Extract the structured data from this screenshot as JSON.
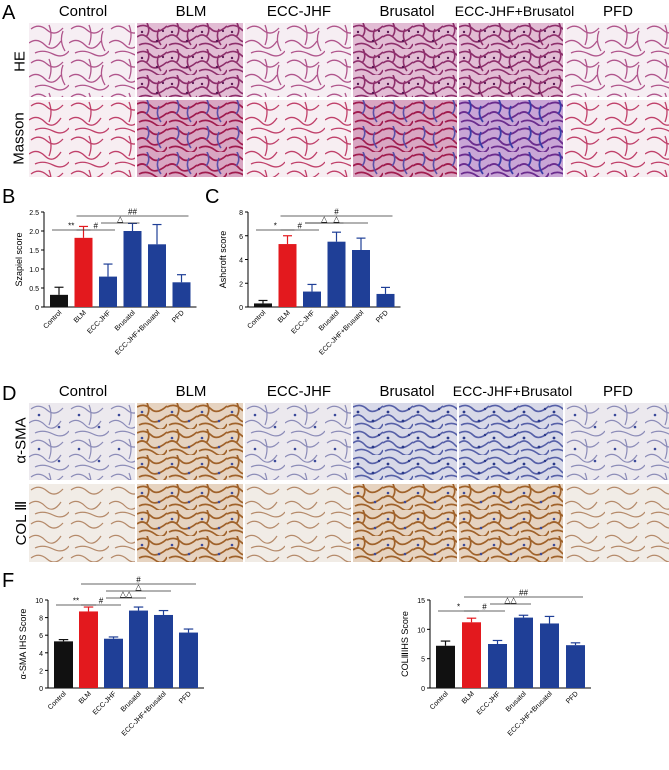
{
  "panelA": {
    "letter": "A",
    "columns": [
      "Control",
      "BLM",
      "ECC-JHF",
      "Brusatol",
      "ECC-JHF+Brusatol",
      "PFD"
    ],
    "rows": [
      "HE",
      "Masson"
    ]
  },
  "panelD": {
    "letter": "D",
    "columns": [
      "Control",
      "BLM",
      "ECC-JHF",
      "Brusatol",
      "ECC-JHF+Brusatol",
      "PFD"
    ],
    "rows": [
      "α-SMA",
      "COL Ⅲ"
    ]
  },
  "panelB": {
    "letter": "B"
  },
  "panelC": {
    "letter": "C"
  },
  "panelF": {
    "letter": "F"
  },
  "colors": {
    "control": "#111111",
    "blm": "#e3191e",
    "blue": "#1f3f97"
  },
  "chart_data": [
    {
      "panel": "B",
      "type": "bar",
      "ylabel": "Szapiel score",
      "ylim": [
        0,
        2.5
      ],
      "yticks": [
        0,
        0.5,
        1.0,
        1.5,
        2.0,
        2.5
      ],
      "ytick_labels": [
        "0",
        "0.5",
        "1.0",
        "1.5",
        "2.0",
        "2.5"
      ],
      "categories": [
        "Control",
        "BLM",
        "ECC-JHF",
        "Brusatol",
        "ECC-JHF+Brusatol",
        "PFD"
      ],
      "values": [
        0.32,
        1.82,
        0.8,
        2.0,
        1.65,
        0.65
      ],
      "errors": [
        0.2,
        0.3,
        0.33,
        0.2,
        0.52,
        0.2
      ],
      "annotations": [
        {
          "from": 0,
          "to": 1,
          "text": "**",
          "level": 0
        },
        {
          "from": 1,
          "to": 2,
          "text": "#",
          "level": 0
        },
        {
          "from": 2,
          "to": 3,
          "text": "△",
          "level": 1
        },
        {
          "from": 1,
          "to": 5,
          "text": "##",
          "level": 2
        }
      ]
    },
    {
      "panel": "C",
      "type": "bar",
      "ylabel": "Ashcroft score",
      "ylim": [
        0,
        8
      ],
      "yticks": [
        0,
        2,
        4,
        6,
        8
      ],
      "ytick_labels": [
        "0",
        "2",
        "4",
        "6",
        "8"
      ],
      "categories": [
        "Control",
        "BLM",
        "ECC-JHF",
        "Brusatol",
        "ECC-JHF+Brusatol",
        "PFD"
      ],
      "values": [
        0.3,
        5.3,
        1.3,
        5.5,
        4.8,
        1.1
      ],
      "errors": [
        0.25,
        0.7,
        0.6,
        0.8,
        1.0,
        0.55
      ],
      "annotations": [
        {
          "from": 0,
          "to": 1,
          "text": "*",
          "level": 0
        },
        {
          "from": 1,
          "to": 2,
          "text": "#",
          "level": 0
        },
        {
          "from": 2,
          "to": 3,
          "text": "△",
          "level": 1
        },
        {
          "from": 2,
          "to": 4,
          "text": "△",
          "level": 1
        },
        {
          "from": 1,
          "to": 5,
          "text": "#",
          "level": 2
        }
      ]
    },
    {
      "panel": "F1",
      "type": "bar",
      "ylabel": "α-SMA IHS Score",
      "ylim": [
        0,
        10
      ],
      "yticks": [
        0,
        2,
        4,
        6,
        8,
        10
      ],
      "ytick_labels": [
        "0",
        "2",
        "4",
        "6",
        "8",
        "10"
      ],
      "categories": [
        "Control",
        "BLM",
        "ECC-JHF",
        "Brusatol",
        "ECC-JHF+Brusatol",
        "PFD"
      ],
      "values": [
        5.3,
        8.7,
        5.6,
        8.8,
        8.3,
        6.3
      ],
      "errors": [
        0.2,
        0.5,
        0.2,
        0.4,
        0.5,
        0.4
      ],
      "annotations": [
        {
          "from": 0,
          "to": 1,
          "text": "**",
          "level": 0
        },
        {
          "from": 1,
          "to": 2,
          "text": "#",
          "level": 0
        },
        {
          "from": 2,
          "to": 3,
          "text": "△△",
          "level": 1
        },
        {
          "from": 2,
          "to": 4,
          "text": "△",
          "level": 2
        },
        {
          "from": 1,
          "to": 5,
          "text": "#",
          "level": 3
        }
      ]
    },
    {
      "panel": "F2",
      "type": "bar",
      "ylabel": "COLⅢIHS Score",
      "ylim": [
        0,
        15
      ],
      "yticks": [
        0,
        5,
        10,
        15
      ],
      "ytick_labels": [
        "0",
        "5",
        "10",
        "15"
      ],
      "categories": [
        "Control",
        "BLM",
        "ECC-JHF",
        "Brusatol",
        "ECC-JHF+Brusatol",
        "PFD"
      ],
      "values": [
        7.2,
        11.2,
        7.5,
        12.0,
        11.0,
        7.3
      ],
      "errors": [
        0.8,
        0.7,
        0.6,
        0.4,
        1.2,
        0.4
      ],
      "annotations": [
        {
          "from": 0,
          "to": 1,
          "text": "*",
          "level": 0
        },
        {
          "from": 1,
          "to": 2,
          "text": "#",
          "level": 0
        },
        {
          "from": 2,
          "to": 3,
          "text": "△△",
          "level": 1
        },
        {
          "from": 1,
          "to": 5,
          "text": "##",
          "level": 2
        }
      ]
    }
  ]
}
